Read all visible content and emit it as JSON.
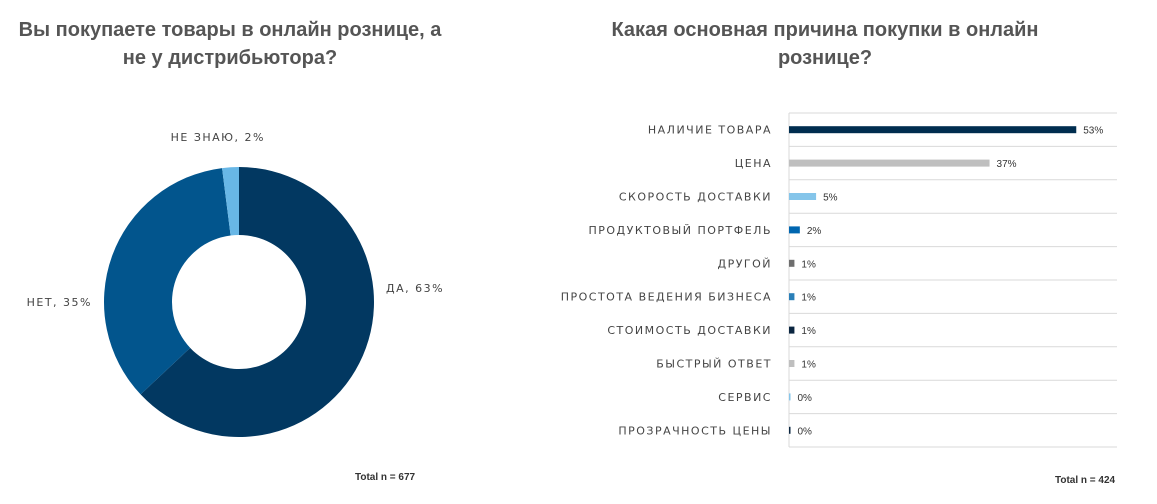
{
  "chart_data": [
    {
      "type": "pie",
      "donut": true,
      "title": "Вы покупаете товары в онлайн рознице, а не у дистрибьютора?",
      "slices": [
        {
          "label": "ДА, 63%",
          "value": 63,
          "color": "#023861"
        },
        {
          "label": "НЕТ, 35%",
          "value": 35,
          "color": "#02558d"
        },
        {
          "label": "НЕ ЗНАЮ, 2%",
          "value": 2,
          "color": "#68b7e6"
        }
      ],
      "footnote": "Total n = 677"
    },
    {
      "type": "bar",
      "orientation": "horizontal",
      "title": "Какая основная причина покупки в онлайн рознице?",
      "categories": [
        "НАЛИЧИЕ ТОВАРА",
        "ЦЕНА",
        "СКОРОСТЬ ДОСТАВКИ",
        "ПРОДУКТОВЫЙ ПОРТФЕЛЬ",
        "ДРУГОЙ",
        "ПРОСТОТА ВЕДЕНИЯ БИЗНЕСА",
        "СТОИМОСТЬ ДОСТАВКИ",
        "БЫСТРЫЙ ОТВЕТ",
        "СЕРВИС",
        "ПРОЗРАЧНОСТЬ ЦЕНЫ"
      ],
      "values": [
        53,
        37,
        5,
        2,
        1,
        1,
        1,
        1,
        0,
        0
      ],
      "data_labels": [
        "53%",
        "37%",
        "5%",
        "2%",
        "1%",
        "1%",
        "1%",
        "1%",
        "0%",
        "0%"
      ],
      "colors": [
        "#002d4f",
        "#bfbfbf",
        "#85c5ea",
        "#0066b0",
        "#6e6e6e",
        "#2a7fb8",
        "#0a2540",
        "#bfbfbf",
        "#85c5ea",
        "#0a2540"
      ],
      "grid": true,
      "footnote": "Total n = 424"
    }
  ]
}
